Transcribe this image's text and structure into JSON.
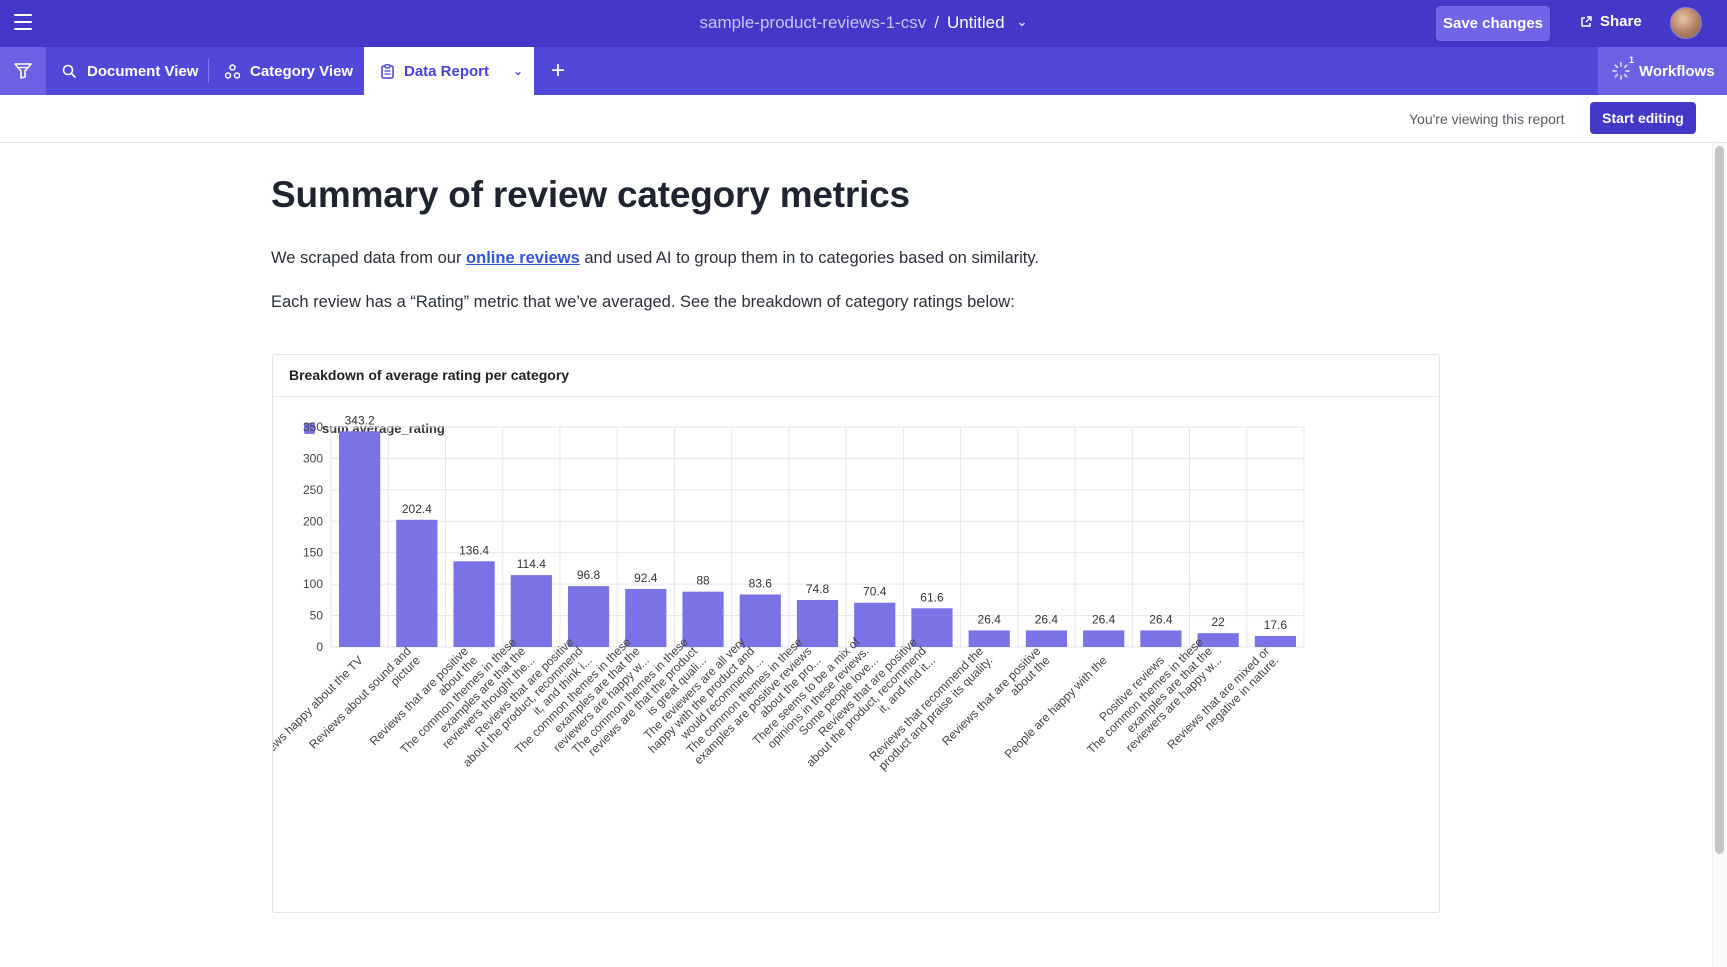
{
  "topbar": {
    "file_name": "sample-product-reviews-1-csv",
    "separator": "/",
    "doc_name": "Untitled",
    "save_label": "Save changes",
    "share_label": "Share"
  },
  "tabs": {
    "document_view": "Document View",
    "category_view": "Category View",
    "data_report": "Data Report",
    "workflows": "Workflows",
    "workflows_badge": "1"
  },
  "viewbar": {
    "viewing_text": "You're viewing this report",
    "start_label": "Start editing"
  },
  "report": {
    "title": "Summary of review category metrics",
    "para1_before": "We scraped data from our ",
    "para1_link": "online reviews",
    "para1_after": " and used AI to group them in to categories based on similarity.",
    "para2": "Each review has a “Rating” metric that we’ve averaged. See the breakdown of category ratings below:"
  },
  "colors": {
    "bar": "#7a73e5",
    "brand": "#4438c8"
  },
  "chart_data": {
    "type": "bar",
    "title": "Breakdown of average rating per category",
    "legend": "sum average_rating",
    "legend_position": "top-left",
    "ylim": [
      0,
      350
    ],
    "yticks": [
      0,
      50,
      100,
      150,
      200,
      250,
      300,
      350
    ],
    "grid": true,
    "categories": [
      [
        "Reviews happy about the TV"
      ],
      [
        "Reviews about sound and",
        "picture"
      ],
      [
        "Reviews that are positive",
        "about the"
      ],
      [
        "The common themes in these",
        "examples are that the",
        "reviewers thought the..."
      ],
      [
        "Reviews that are positive",
        "about the product, recommend",
        "it, and think i..."
      ],
      [
        "The common themes in these",
        "examples are that the",
        "reviewers are happy w..."
      ],
      [
        "The common themes in these",
        "reviews are that the product",
        "is great quali..."
      ],
      [
        "The reviewers are all very",
        "happy with the product and",
        "would recommend ..."
      ],
      [
        "The common themes in these",
        "examples are positive reviews",
        "about the pro..."
      ],
      [
        "There seems to be a mix of",
        "opinions in these reviews.",
        "Some people love..."
      ],
      [
        "Reviews that are positive",
        "about the product, recommend",
        "it, and find it..."
      ],
      [
        "Reviews that recommend the",
        "product and praise its quality."
      ],
      [
        "Reviews that are positive",
        "about the"
      ],
      [
        "People are happy with the"
      ],
      [
        "Positive reviews"
      ],
      [
        "The common themes in these",
        "examples are that the",
        "reviewers are happy w..."
      ],
      [
        "Reviews that are mixed or",
        "negative in nature."
      ]
    ],
    "values": [
      343.2,
      202.4,
      136.4,
      114.4,
      96.8,
      92.4,
      88,
      83.6,
      74.8,
      70.4,
      61.6,
      26.4,
      26.4,
      26.4,
      26.4,
      22,
      17.6
    ],
    "value_labels": [
      "343.2",
      "202.4",
      "136.4",
      "114.4",
      "96.8",
      "92.4",
      "88",
      "83.6",
      "74.8",
      "70.4",
      "61.6",
      "26.4",
      "26.4",
      "26.4",
      "26.4",
      "22",
      "17.6"
    ]
  }
}
